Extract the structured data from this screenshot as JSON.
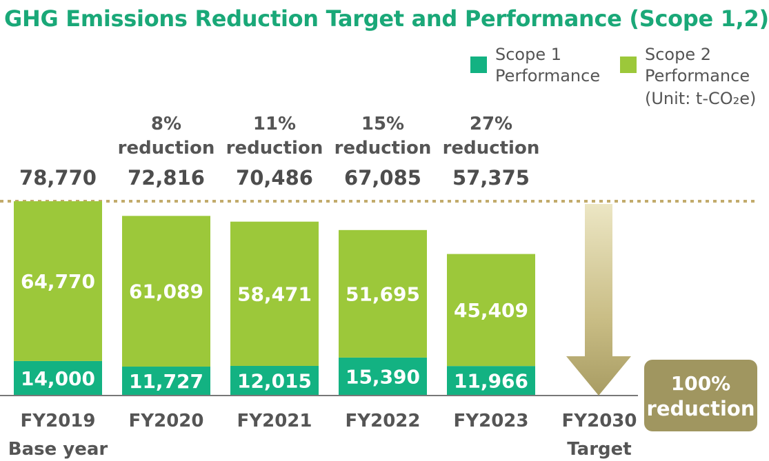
{
  "title": "GHG Emissions Reduction Target and Performance (Scope 1,2)",
  "legend": {
    "scope1": "Scope 1 Performance",
    "scope1_lines": [
      "Scope 1",
      "Performance"
    ],
    "scope2": "Scope 2 Performance",
    "scope2_lines": [
      "Scope 2",
      "Performance"
    ],
    "unit": "(Unit: t-CO₂e)"
  },
  "colors": {
    "title": "#1aa878",
    "scope1": "#13b282",
    "scope2": "#9cc83a",
    "target_arrow": "#a89c63",
    "target_box": "#a09660"
  },
  "chart_data": {
    "type": "bar",
    "stacked": true,
    "categories": [
      "FY2019",
      "FY2020",
      "FY2021",
      "FY2022",
      "FY2023",
      "FY2030"
    ],
    "category_sublabels": [
      "Base year",
      "",
      "",
      "",
      "",
      "Target"
    ],
    "series": [
      {
        "name": "Scope 1 Performance",
        "values": [
          14000,
          11727,
          12015,
          15390,
          11966,
          null
        ]
      },
      {
        "name": "Scope 2 Performance",
        "values": [
          64770,
          61089,
          58471,
          51695,
          45409,
          null
        ]
      }
    ],
    "totals": [
      78770,
      72816,
      70486,
      67085,
      57375,
      null
    ],
    "total_labels": [
      "78,770",
      "72,816",
      "70,486",
      "67,085",
      "57,375",
      ""
    ],
    "scope1_labels": [
      "14,000",
      "11,727",
      "12,015",
      "15,390",
      "11,966",
      ""
    ],
    "scope2_labels": [
      "64,770",
      "61,089",
      "58,471",
      "51,695",
      "45,409",
      ""
    ],
    "reduction_pct": [
      null,
      8,
      11,
      15,
      27,
      100
    ],
    "reduction_labels": [
      [],
      [
        "8%",
        "reduction"
      ],
      [
        "11%",
        "reduction"
      ],
      [
        "15%",
        "reduction"
      ],
      [
        "27%",
        "reduction"
      ],
      []
    ],
    "target_labels": [
      "100%",
      "reduction"
    ],
    "reference_line_value": 78770,
    "ylim": [
      0,
      78770
    ],
    "unit": "t-CO₂e",
    "grid": false,
    "legend_position": "top-right"
  }
}
